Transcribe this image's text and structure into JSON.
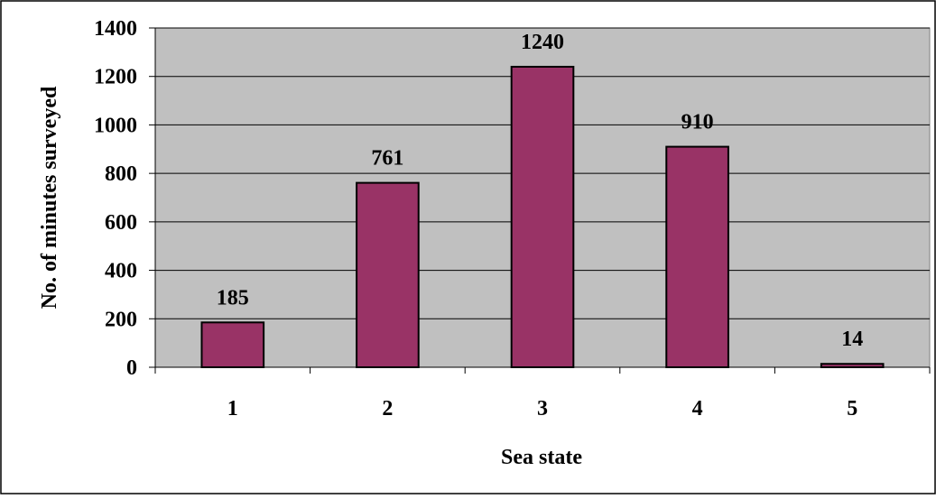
{
  "chart_data": {
    "type": "bar",
    "categories": [
      "1",
      "2",
      "3",
      "4",
      "5"
    ],
    "values": [
      185,
      761,
      1240,
      910,
      14
    ],
    "data_labels": [
      "185",
      "761",
      "1240",
      "910",
      "14"
    ],
    "xlabel": "Sea state",
    "ylabel": "No. of minutes surveyed",
    "ylim": [
      0,
      1400
    ],
    "yticks": [
      0,
      200,
      400,
      600,
      800,
      1000,
      1200,
      1400
    ],
    "ytick_labels": [
      "0",
      "200",
      "400",
      "600",
      "800",
      "1000",
      "1200",
      "1400"
    ],
    "grid": true,
    "legend": "none",
    "colors": {
      "bar_fill": "#993366",
      "bar_stroke": "#000000",
      "plot_background": "#c0c0c0",
      "gridline": "#000000"
    }
  }
}
